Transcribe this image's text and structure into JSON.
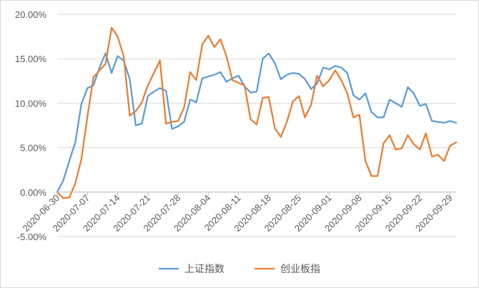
{
  "chart_data": {
    "type": "line",
    "ylim": [
      -0.05,
      0.2
    ],
    "yticks": [
      -0.05,
      0.0,
      0.05,
      0.1,
      0.15,
      0.2
    ],
    "ytick_labels": [
      "-5.00%",
      "0.00%",
      "5.00%",
      "10.00%",
      "15.00%",
      "20.00%"
    ],
    "xtick_labels": [
      "2020-06-30",
      "2020-07-07",
      "2020-07-14",
      "2020-07-21",
      "2020-07-28",
      "2020-08-04",
      "2020-08-11",
      "2020-08-18",
      "2020-08-25",
      "2020-09-01",
      "2020-09-08",
      "2020-09-15",
      "2020-09-22",
      "2020-09-29"
    ],
    "grid": "horizontal",
    "legend": "bottom",
    "x": [
      "2020-06-30",
      "2020-07-01",
      "2020-07-02",
      "2020-07-03",
      "2020-07-06",
      "2020-07-07",
      "2020-07-08",
      "2020-07-09",
      "2020-07-10",
      "2020-07-13",
      "2020-07-14",
      "2020-07-15",
      "2020-07-16",
      "2020-07-17",
      "2020-07-20",
      "2020-07-21",
      "2020-07-22",
      "2020-07-23",
      "2020-07-24",
      "2020-07-27",
      "2020-07-28",
      "2020-07-29",
      "2020-07-30",
      "2020-07-31",
      "2020-08-03",
      "2020-08-04",
      "2020-08-05",
      "2020-08-06",
      "2020-08-07",
      "2020-08-10",
      "2020-08-11",
      "2020-08-12",
      "2020-08-13",
      "2020-08-14",
      "2020-08-17",
      "2020-08-18",
      "2020-08-19",
      "2020-08-20",
      "2020-08-21",
      "2020-08-24",
      "2020-08-25",
      "2020-08-26",
      "2020-08-27",
      "2020-08-28",
      "2020-08-31",
      "2020-09-01",
      "2020-09-02",
      "2020-09-03",
      "2020-09-04",
      "2020-09-07",
      "2020-09-08",
      "2020-09-09",
      "2020-09-10",
      "2020-09-11",
      "2020-09-14",
      "2020-09-15",
      "2020-09-16",
      "2020-09-17",
      "2020-09-18",
      "2020-09-21",
      "2020-09-22",
      "2020-09-23",
      "2020-09-24",
      "2020-09-25",
      "2020-09-28",
      "2020-09-29",
      "2020-09-30"
    ],
    "series": [
      {
        "name": "上证指数",
        "color": "#5B9BD5",
        "values": [
          0.0,
          0.013,
          0.035,
          0.056,
          0.099,
          0.117,
          0.12,
          0.14,
          0.156,
          0.134,
          0.153,
          0.148,
          0.127,
          0.075,
          0.077,
          0.108,
          0.113,
          0.117,
          0.114,
          0.071,
          0.074,
          0.079,
          0.104,
          0.101,
          0.128,
          0.13,
          0.132,
          0.135,
          0.124,
          0.128,
          0.131,
          0.119,
          0.112,
          0.113,
          0.15,
          0.156,
          0.145,
          0.127,
          0.132,
          0.134,
          0.133,
          0.127,
          0.116,
          0.122,
          0.14,
          0.138,
          0.142,
          0.14,
          0.134,
          0.109,
          0.104,
          0.111,
          0.09,
          0.084,
          0.084,
          0.104,
          0.1,
          0.096,
          0.118,
          0.111,
          0.097,
          0.099,
          0.08,
          0.079,
          0.078,
          0.08,
          0.078
        ]
      },
      {
        "name": "创业板指",
        "color": "#ED7D31",
        "values": [
          0.0,
          -0.007,
          -0.006,
          0.01,
          0.037,
          0.085,
          0.129,
          0.137,
          0.144,
          0.185,
          0.175,
          0.153,
          0.086,
          0.091,
          0.101,
          0.12,
          0.134,
          0.148,
          0.077,
          0.079,
          0.08,
          0.095,
          0.135,
          0.126,
          0.166,
          0.176,
          0.163,
          0.172,
          0.153,
          0.126,
          0.123,
          0.12,
          0.082,
          0.076,
          0.106,
          0.107,
          0.072,
          0.062,
          0.079,
          0.102,
          0.108,
          0.084,
          0.098,
          0.131,
          0.119,
          0.126,
          0.137,
          0.126,
          0.111,
          0.084,
          0.087,
          0.035,
          0.018,
          0.018,
          0.055,
          0.064,
          0.048,
          0.049,
          0.064,
          0.054,
          0.048,
          0.066,
          0.04,
          0.042,
          0.035,
          0.052,
          0.056
        ]
      }
    ]
  }
}
